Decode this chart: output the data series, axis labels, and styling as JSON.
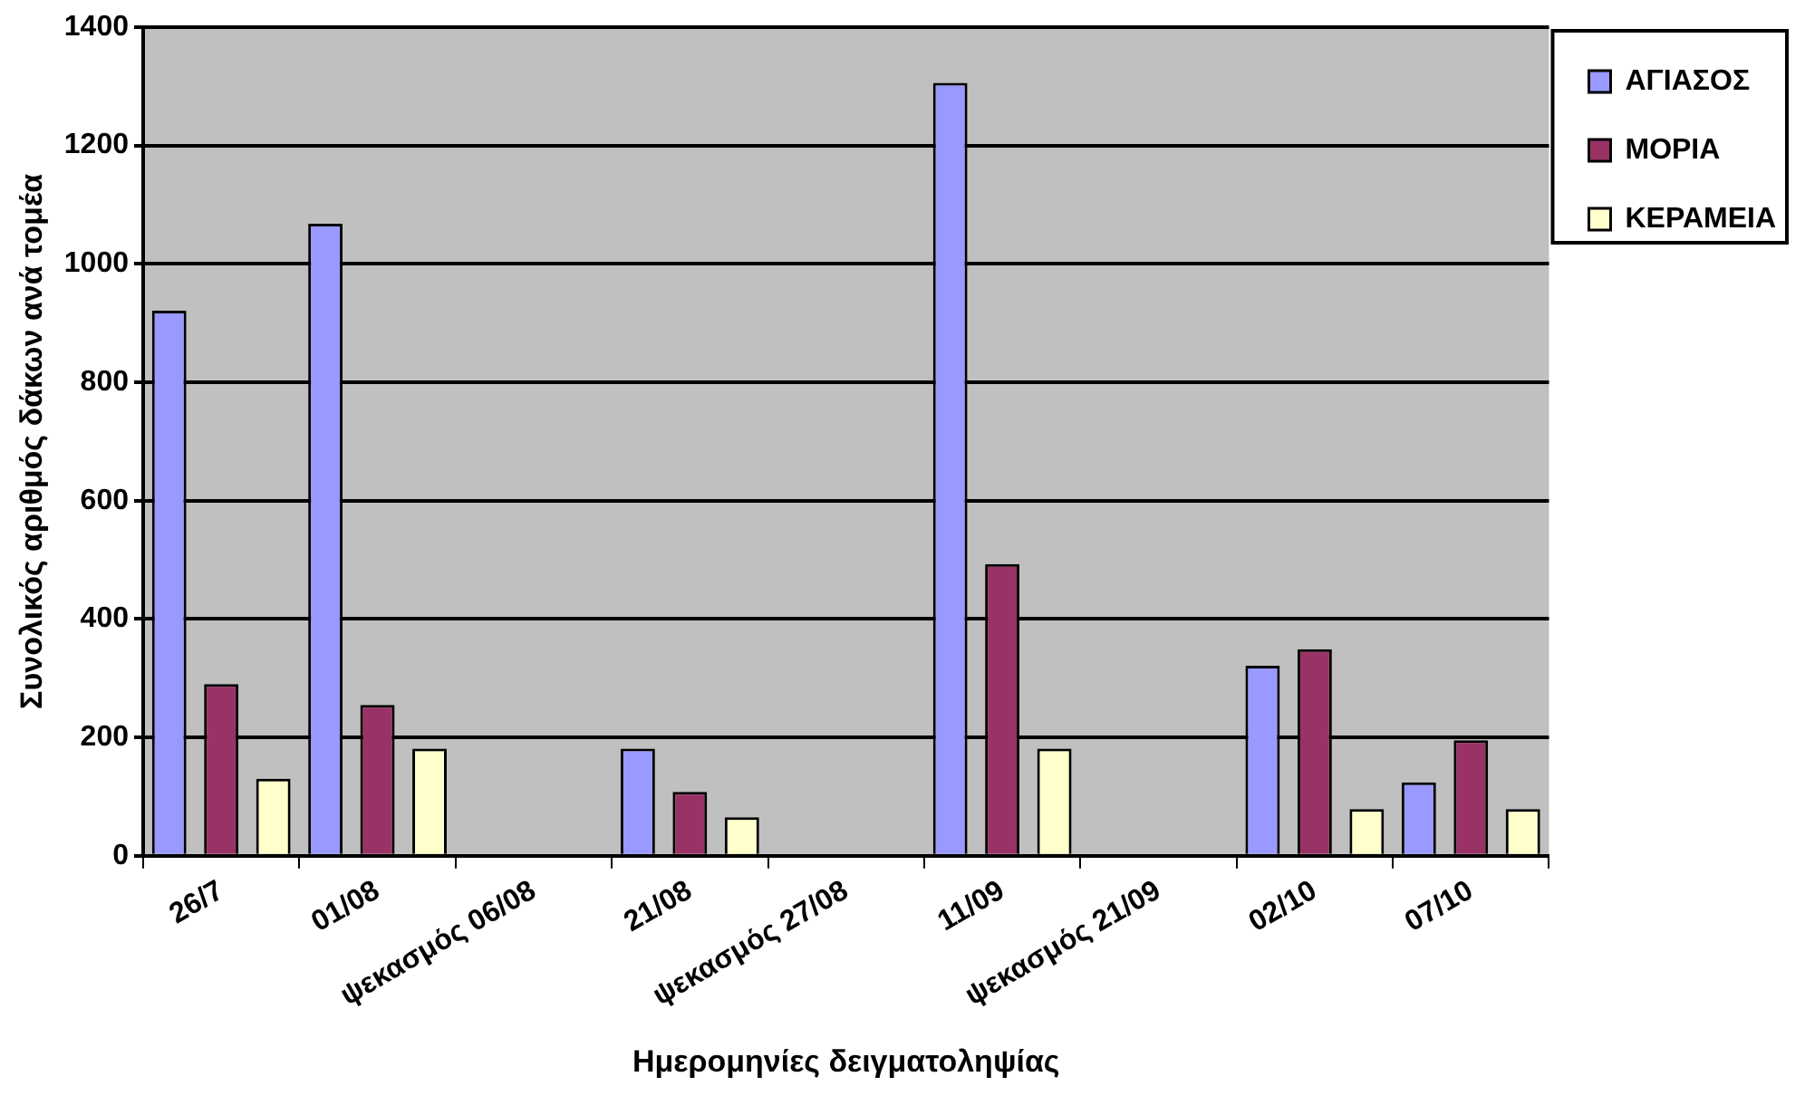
{
  "chart_data": {
    "type": "bar",
    "xlabel": "Ημερομηνίες δειγματοληψίας",
    "ylabel": "Συνολικός αριθμός δάκων ανά τομέα",
    "categories": [
      "26/7",
      "01/08",
      "ψεκασμός 06/08",
      "21/08",
      "ψεκασμός 27/08",
      "11/09",
      "ψεκασμός 21/09",
      "02/10",
      "07/10"
    ],
    "series": [
      {
        "name": "ΑΓΙΑΣΟΣ",
        "color": "#9999ff",
        "values": [
          921,
          1068,
          null,
          181,
          null,
          1306,
          null,
          321,
          124
        ]
      },
      {
        "name": "ΜΟΡΙΑ",
        "color": "#993366",
        "values": [
          290,
          255,
          null,
          108,
          null,
          493,
          null,
          349,
          195
        ]
      },
      {
        "name": "ΚΕΡΑΜΕΙΑ",
        "color": "#ffffcc",
        "values": [
          130,
          181,
          null,
          65,
          null,
          181,
          null,
          79,
          79
        ]
      }
    ],
    "ylim": [
      0,
      1400
    ],
    "yticks": [
      0,
      200,
      400,
      600,
      800,
      1000,
      1200,
      1400
    ],
    "grid": "y",
    "legend": "top right"
  }
}
